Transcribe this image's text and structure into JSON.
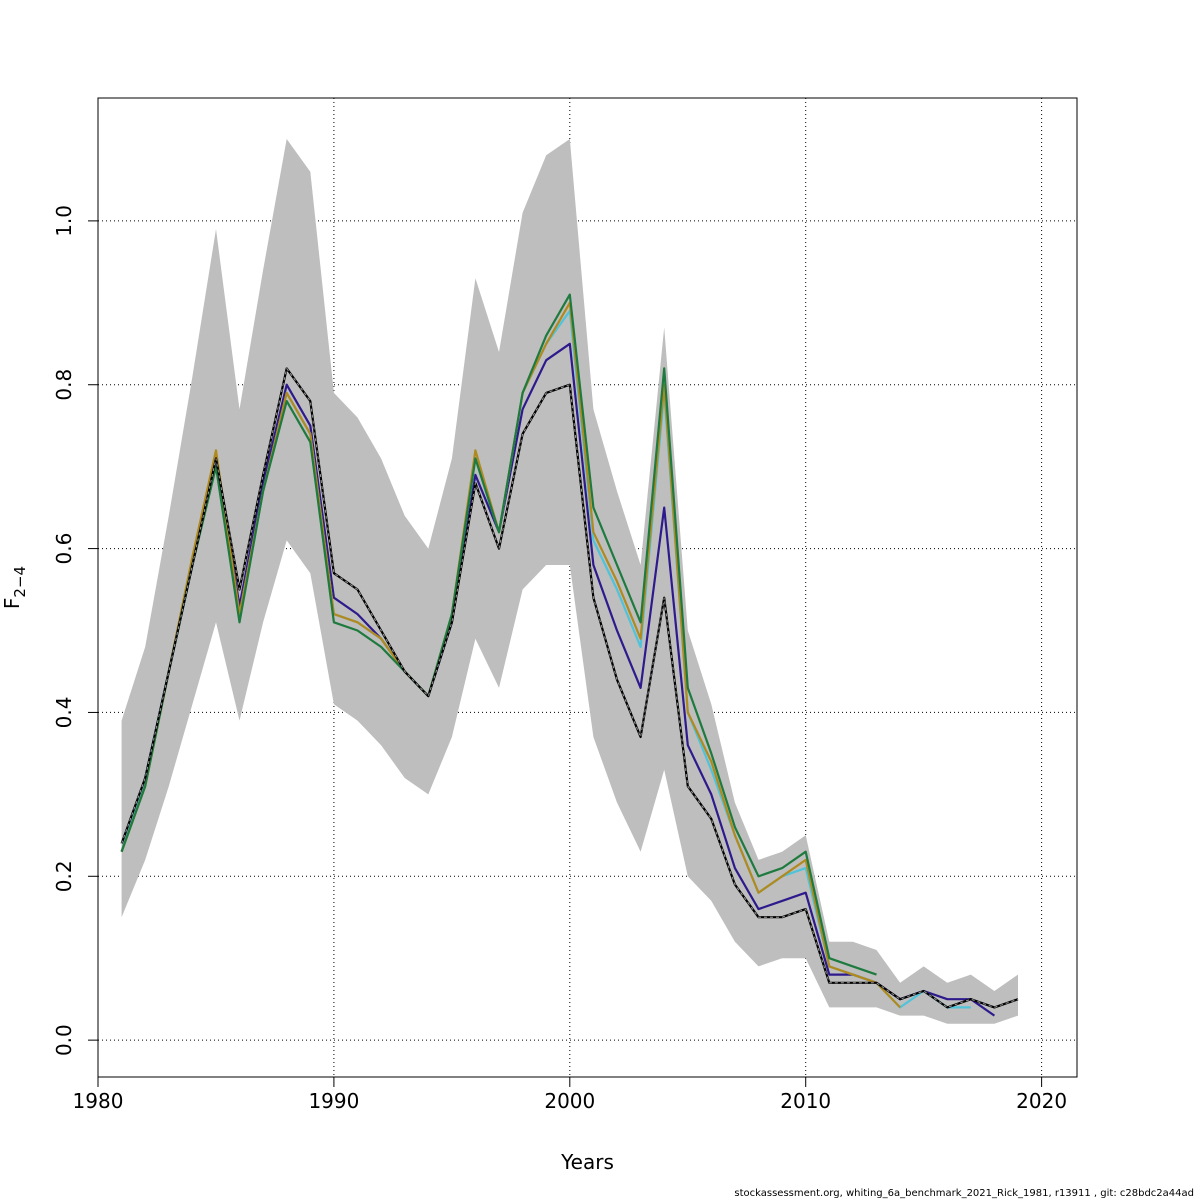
{
  "chart_data": {
    "type": "line",
    "xlabel": "Years",
    "ylabel": "F",
    "ylabel_subscript": "2−4",
    "xlim": [
      1980,
      2021.5
    ],
    "ylim": [
      -0.045,
      1.15
    ],
    "xticks": [
      "1980",
      "1990",
      "2000",
      "2010",
      "2020"
    ],
    "yticks": [
      "0.0",
      "0.2",
      "0.4",
      "0.6",
      "0.8",
      "1.0"
    ],
    "grid": true,
    "band": {
      "x": [
        1981,
        1982,
        1983,
        1984,
        1985,
        1986,
        1987,
        1988,
        1989,
        1990,
        1991,
        1992,
        1993,
        1994,
        1995,
        1996,
        1997,
        1998,
        1999,
        2000,
        2001,
        2002,
        2003,
        2004,
        2005,
        2006,
        2007,
        2008,
        2009,
        2010,
        2011,
        2012,
        2013,
        2014,
        2015,
        2016,
        2017,
        2018,
        2019
      ],
      "upper": [
        0.39,
        0.48,
        0.64,
        0.81,
        0.99,
        0.77,
        0.94,
        1.1,
        1.06,
        0.79,
        0.76,
        0.71,
        0.64,
        0.6,
        0.71,
        0.93,
        0.84,
        1.01,
        1.08,
        1.1,
        0.77,
        0.67,
        0.58,
        0.87,
        0.5,
        0.41,
        0.29,
        0.22,
        0.23,
        0.25,
        0.12,
        0.12,
        0.11,
        0.07,
        0.09,
        0.07,
        0.08,
        0.06,
        0.08
      ],
      "lower": [
        0.15,
        0.22,
        0.31,
        0.41,
        0.51,
        0.39,
        0.51,
        0.61,
        0.57,
        0.41,
        0.39,
        0.36,
        0.32,
        0.3,
        0.37,
        0.49,
        0.43,
        0.55,
        0.58,
        0.58,
        0.37,
        0.29,
        0.23,
        0.33,
        0.2,
        0.17,
        0.12,
        0.09,
        0.1,
        0.1,
        0.04,
        0.04,
        0.04,
        0.03,
        0.03,
        0.02,
        0.02,
        0.02,
        0.03
      ],
      "color": "#bebebe"
    },
    "series": [
      {
        "color": "#000000",
        "dashed": true,
        "x": [
          1981,
          1982,
          1983,
          1984,
          1985,
          1986,
          1987,
          1988,
          1989,
          1990,
          1991,
          1992,
          1993,
          1994,
          1995,
          1996,
          1997,
          1998,
          1999,
          2000,
          2001,
          2002,
          2003,
          2004,
          2005,
          2006,
          2007,
          2008,
          2009,
          2010,
          2011,
          2012,
          2013,
          2014,
          2015,
          2016,
          2017,
          2018,
          2019
        ],
        "values": [
          0.24,
          0.32,
          0.45,
          0.58,
          0.71,
          0.55,
          0.69,
          0.82,
          0.78,
          0.57,
          0.55,
          0.5,
          0.45,
          0.42,
          0.51,
          0.68,
          0.6,
          0.74,
          0.79,
          0.8,
          0.54,
          0.44,
          0.37,
          0.54,
          0.31,
          0.27,
          0.19,
          0.15,
          0.15,
          0.16,
          0.07,
          0.07,
          0.07,
          0.05,
          0.06,
          0.04,
          0.05,
          0.04,
          0.05
        ]
      },
      {
        "color": "#2e1a8c",
        "dashed": false,
        "x": [
          1981,
          1982,
          1983,
          1984,
          1985,
          1986,
          1987,
          1988,
          1989,
          1990,
          1991,
          1992,
          1993,
          1994,
          1995,
          1996,
          1997,
          1998,
          1999,
          2000,
          2001,
          2002,
          2003,
          2004,
          2005,
          2006,
          2007,
          2008,
          2009,
          2010,
          2011,
          2012,
          2013,
          2014,
          2015,
          2016,
          2017,
          2018
        ],
        "values": [
          0.23,
          0.32,
          0.45,
          0.58,
          0.71,
          0.53,
          0.68,
          0.8,
          0.75,
          0.54,
          0.52,
          0.49,
          0.45,
          0.42,
          0.51,
          0.69,
          0.62,
          0.77,
          0.83,
          0.85,
          0.58,
          0.5,
          0.43,
          0.65,
          0.36,
          0.3,
          0.21,
          0.16,
          0.17,
          0.18,
          0.08,
          0.08,
          0.07,
          0.05,
          0.06,
          0.05,
          0.05,
          0.03
        ]
      },
      {
        "color": "#4fc3d9",
        "dashed": false,
        "x": [
          1981,
          1982,
          1983,
          1984,
          1985,
          1986,
          1987,
          1988,
          1989,
          1990,
          1991,
          1992,
          1993,
          1994,
          1995,
          1996,
          1997,
          1998,
          1999,
          2000,
          2001,
          2002,
          2003,
          2004,
          2005,
          2006,
          2007,
          2008,
          2009,
          2010,
          2011,
          2012,
          2013,
          2014,
          2015,
          2016,
          2017
        ],
        "values": [
          0.23,
          0.32,
          0.45,
          0.58,
          0.71,
          0.52,
          0.67,
          0.79,
          0.74,
          0.52,
          0.51,
          0.49,
          0.45,
          0.42,
          0.52,
          0.71,
          0.62,
          0.79,
          0.85,
          0.89,
          0.61,
          0.55,
          0.48,
          0.79,
          0.4,
          0.33,
          0.25,
          0.18,
          0.2,
          0.21,
          0.09,
          0.08,
          0.07,
          0.04,
          0.06,
          0.04,
          0.04
        ]
      },
      {
        "color": "#b08a1e",
        "dashed": false,
        "x": [
          1981,
          1982,
          1983,
          1984,
          1985,
          1986,
          1987,
          1988,
          1989,
          1990,
          1991,
          1992,
          1993,
          1994,
          1995,
          1996,
          1997,
          1998,
          1999,
          2000,
          2001,
          2002,
          2003,
          2004,
          2005,
          2006,
          2007,
          2008,
          2009,
          2010,
          2011,
          2012,
          2013,
          2014
        ],
        "values": [
          0.23,
          0.31,
          0.45,
          0.59,
          0.72,
          0.52,
          0.67,
          0.79,
          0.74,
          0.52,
          0.51,
          0.49,
          0.45,
          0.42,
          0.52,
          0.72,
          0.62,
          0.79,
          0.85,
          0.9,
          0.62,
          0.56,
          0.49,
          0.8,
          0.4,
          0.34,
          0.25,
          0.18,
          0.2,
          0.22,
          0.09,
          0.08,
          0.07,
          0.04
        ]
      },
      {
        "color": "#1e7a3e",
        "dashed": false,
        "x": [
          1981,
          1982,
          1983,
          1984,
          1985,
          1986,
          1987,
          1988,
          1989,
          1990,
          1991,
          1992,
          1993,
          1994,
          1995,
          1996,
          1997,
          1998,
          1999,
          2000,
          2001,
          2002,
          2003,
          2004,
          2005,
          2006,
          2007,
          2008,
          2009,
          2010,
          2011,
          2012,
          2013
        ],
        "values": [
          0.23,
          0.31,
          0.45,
          0.58,
          0.7,
          0.51,
          0.67,
          0.78,
          0.73,
          0.51,
          0.5,
          0.48,
          0.45,
          0.42,
          0.52,
          0.71,
          0.62,
          0.79,
          0.86,
          0.91,
          0.65,
          0.58,
          0.51,
          0.82,
          0.43,
          0.35,
          0.26,
          0.2,
          0.21,
          0.23,
          0.1,
          0.09,
          0.08
        ]
      }
    ]
  },
  "footer": "stockassessment.org, whiting_6a_benchmark_2021_Rick_1981, r13911 , git: c28bdc2a44ad"
}
